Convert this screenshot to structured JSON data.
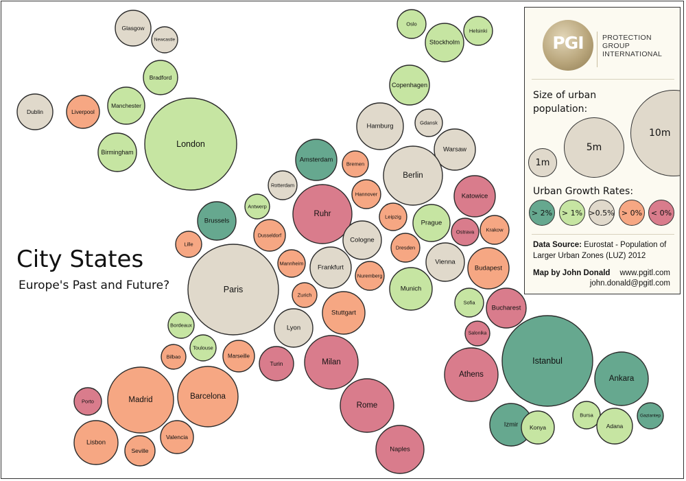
{
  "title": "City States",
  "subtitle": "Europe's Past and Future?",
  "colors": {
    "gt2": "#66a88f",
    "gt1": "#c6e5a2",
    "gt05": "#e0d9cb",
    "gt0": "#f6a783",
    "lt0": "#d97c8c"
  },
  "legend": {
    "logo_text": "PGI",
    "org_lines": [
      "PROTECTION",
      "GROUP",
      "INTERNATIONAL"
    ],
    "size_heading_1": "Size of urban",
    "size_heading_2": "population:",
    "size_labels": {
      "s1": "1m",
      "s5": "5m",
      "s10": "10m"
    },
    "growth_heading": "Urban Growth Rates:",
    "growth_labels": {
      "gt2": "> 2%",
      "gt1": "> 1%",
      "gt05": ">0.5%",
      "gt0": "> 0%",
      "lt0": "< 0%"
    },
    "source_bold": "Data Source:",
    "source_rest": " Eurostat  - Population of",
    "source_line2": "Larger Urban Zones (LUZ) 2012",
    "map_by": "Map by John Donald",
    "website": "www.pgitl.com",
    "email": "john.donald@pgitl.com"
  },
  "chart_data": {
    "type": "bubble",
    "encoding": {
      "size": "urban population",
      "color": "urban growth rate category"
    },
    "categories": [
      "> 2%",
      "> 1%",
      ">0.5%",
      "> 0%",
      "< 0%"
    ],
    "cities": [
      {
        "name": "Glasgow",
        "growth": "gt05"
      },
      {
        "name": "Newcastle",
        "growth": "gt05"
      },
      {
        "name": "Bradford",
        "growth": "gt1"
      },
      {
        "name": "Dublin",
        "growth": "gt05"
      },
      {
        "name": "Liverpool",
        "growth": "gt0"
      },
      {
        "name": "Manchester",
        "growth": "gt1"
      },
      {
        "name": "Birmingham",
        "growth": "gt1"
      },
      {
        "name": "London",
        "growth": "gt1"
      },
      {
        "name": "Oslo",
        "growth": "gt1"
      },
      {
        "name": "Helsinki",
        "growth": "gt1"
      },
      {
        "name": "Stockholm",
        "growth": "gt1"
      },
      {
        "name": "Copenhagen",
        "growth": "gt1"
      },
      {
        "name": "Hamburg",
        "growth": "gt05"
      },
      {
        "name": "Gdansk",
        "growth": "gt05"
      },
      {
        "name": "Warsaw",
        "growth": "gt05"
      },
      {
        "name": "Amsterdam",
        "growth": "gt2"
      },
      {
        "name": "Bremen",
        "growth": "gt0"
      },
      {
        "name": "Berlin",
        "growth": "gt05"
      },
      {
        "name": "Rotterdam",
        "growth": "gt05"
      },
      {
        "name": "Hannover",
        "growth": "gt0"
      },
      {
        "name": "Katowice",
        "growth": "lt0"
      },
      {
        "name": "Antwerp",
        "growth": "gt1"
      },
      {
        "name": "Ruhr",
        "growth": "lt0"
      },
      {
        "name": "Brussels",
        "growth": "gt2"
      },
      {
        "name": "Leipzig",
        "growth": "gt0"
      },
      {
        "name": "Prague",
        "growth": "gt1"
      },
      {
        "name": "Krakow",
        "growth": "gt0"
      },
      {
        "name": "Ostrava",
        "growth": "lt0"
      },
      {
        "name": "Dusseldorf",
        "growth": "gt0"
      },
      {
        "name": "Lille",
        "growth": "gt0"
      },
      {
        "name": "Cologne",
        "growth": "gt05"
      },
      {
        "name": "Dresden",
        "growth": "gt0"
      },
      {
        "name": "Mannheim",
        "growth": "gt0"
      },
      {
        "name": "Frankfurt",
        "growth": "gt05"
      },
      {
        "name": "Vienna",
        "growth": "gt05"
      },
      {
        "name": "Budapest",
        "growth": "gt0"
      },
      {
        "name": "Nuremberg",
        "growth": "gt0"
      },
      {
        "name": "Paris",
        "growth": "gt05"
      },
      {
        "name": "Munich",
        "growth": "gt1"
      },
      {
        "name": "Zurich",
        "growth": "gt0"
      },
      {
        "name": "Sofia",
        "growth": "gt1"
      },
      {
        "name": "Bucharest",
        "growth": "lt0"
      },
      {
        "name": "Stuttgart",
        "growth": "gt0"
      },
      {
        "name": "Bordeaux",
        "growth": "gt1"
      },
      {
        "name": "Lyon",
        "growth": "gt05"
      },
      {
        "name": "Salonika",
        "growth": "lt0"
      },
      {
        "name": "Toulouse",
        "growth": "gt1"
      },
      {
        "name": "Bilbao",
        "growth": "gt0"
      },
      {
        "name": "Marseille",
        "growth": "gt0"
      },
      {
        "name": "Turin",
        "growth": "lt0"
      },
      {
        "name": "Milan",
        "growth": "lt0"
      },
      {
        "name": "Istanbul",
        "growth": "gt2"
      },
      {
        "name": "Athens",
        "growth": "lt0"
      },
      {
        "name": "Ankara",
        "growth": "gt2"
      },
      {
        "name": "Madrid",
        "growth": "gt0"
      },
      {
        "name": "Barcelona",
        "growth": "gt0"
      },
      {
        "name": "Porto",
        "growth": "lt0"
      },
      {
        "name": "Rome",
        "growth": "lt0"
      },
      {
        "name": "Gaziantep",
        "growth": "gt2"
      },
      {
        "name": "Izmir",
        "growth": "gt2"
      },
      {
        "name": "Konya",
        "growth": "gt1"
      },
      {
        "name": "Bursa",
        "growth": "gt1"
      },
      {
        "name": "Adana",
        "growth": "gt1"
      },
      {
        "name": "Lisbon",
        "growth": "gt0"
      },
      {
        "name": "Valencia",
        "growth": "gt0"
      },
      {
        "name": "Seville",
        "growth": "gt0"
      },
      {
        "name": "Naples",
        "growth": "lt0"
      }
    ]
  }
}
